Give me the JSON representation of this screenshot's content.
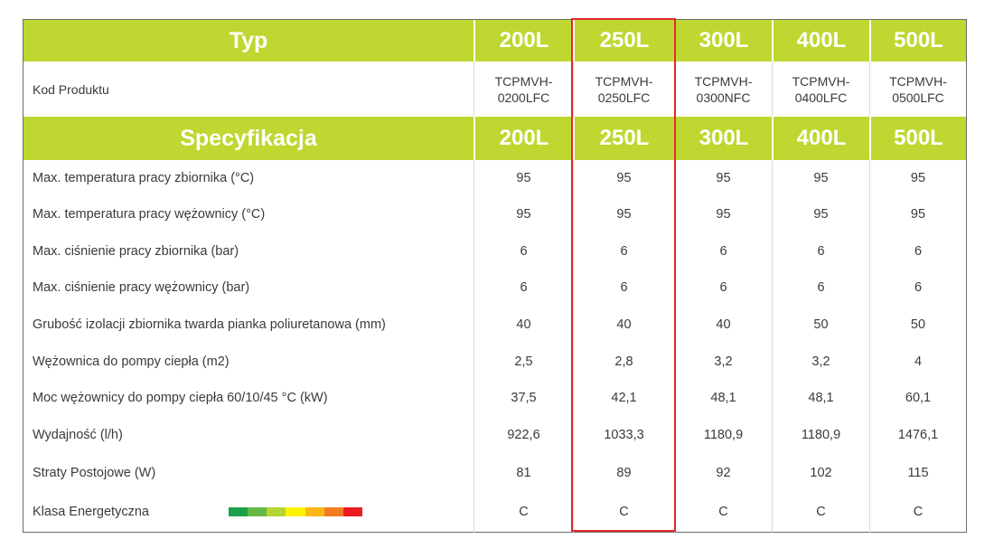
{
  "header": {
    "typ_label": "Typ",
    "volumes": [
      "200L",
      "250L",
      "300L",
      "400L",
      "500L"
    ]
  },
  "codes": {
    "label": "Kod Produktu",
    "values": [
      [
        "TCPMVH-",
        "0200LFC"
      ],
      [
        "TCPMVH-",
        "0250LFC"
      ],
      [
        "TCPMVH-",
        "0300NFC"
      ],
      [
        "TCPMVH-",
        "0400LFC"
      ],
      [
        "TCPMVH-",
        "0500LFC"
      ]
    ]
  },
  "spec_header": {
    "label": "Specyfikacja",
    "volumes": [
      "200L",
      "250L",
      "300L",
      "400L",
      "500L"
    ]
  },
  "rows": [
    {
      "label": "Max. temperatura pracy zbiornika (°C)",
      "values": [
        "95",
        "95",
        "95",
        "95",
        "95"
      ]
    },
    {
      "label": "Max. temperatura pracy wężownicy (°C)",
      "values": [
        "95",
        "95",
        "95",
        "95",
        "95"
      ]
    },
    {
      "label": "Max. ciśnienie pracy zbiornika (bar)",
      "values": [
        "6",
        "6",
        "6",
        "6",
        "6"
      ]
    },
    {
      "label": "Max. ciśnienie pracy wężownicy (bar)",
      "values": [
        "6",
        "6",
        "6",
        "6",
        "6"
      ]
    },
    {
      "label": "Grubość izolacji zbiornika twarda pianka poliuretanowa  (mm)",
      "values": [
        "40",
        "40",
        "40",
        "50",
        "50"
      ]
    },
    {
      "label": "Wężownica do pompy ciepła (m2)",
      "values": [
        "2,5",
        "2,8",
        "3,2",
        "3,2",
        "4"
      ]
    },
    {
      "label": "Moc wężownicy do pompy ciepła 60/10/45 °C (kW)",
      "values": [
        "37,5",
        "42,1",
        "48,1",
        "48,1",
        "60,1"
      ]
    },
    {
      "label": "Wydajność (l/h)",
      "values": [
        "922,6",
        "1033,3",
        "1180,9",
        "1180,9",
        "1476,1"
      ]
    },
    {
      "label": "Straty Postojowe (W)",
      "values": [
        "81",
        "89",
        "92",
        "102",
        "115"
      ]
    },
    {
      "label": "Klasa Energetyczna",
      "values": [
        "C",
        "C",
        "C",
        "C",
        "C"
      ]
    }
  ],
  "energy_scale_colors": [
    "#1ea04b",
    "#66b845",
    "#b7d433",
    "#fff200",
    "#fbb817",
    "#f37b21",
    "#ed1c24"
  ],
  "colors": {
    "header_green": "#bfd730",
    "highlight_red": "#e02b2b"
  }
}
